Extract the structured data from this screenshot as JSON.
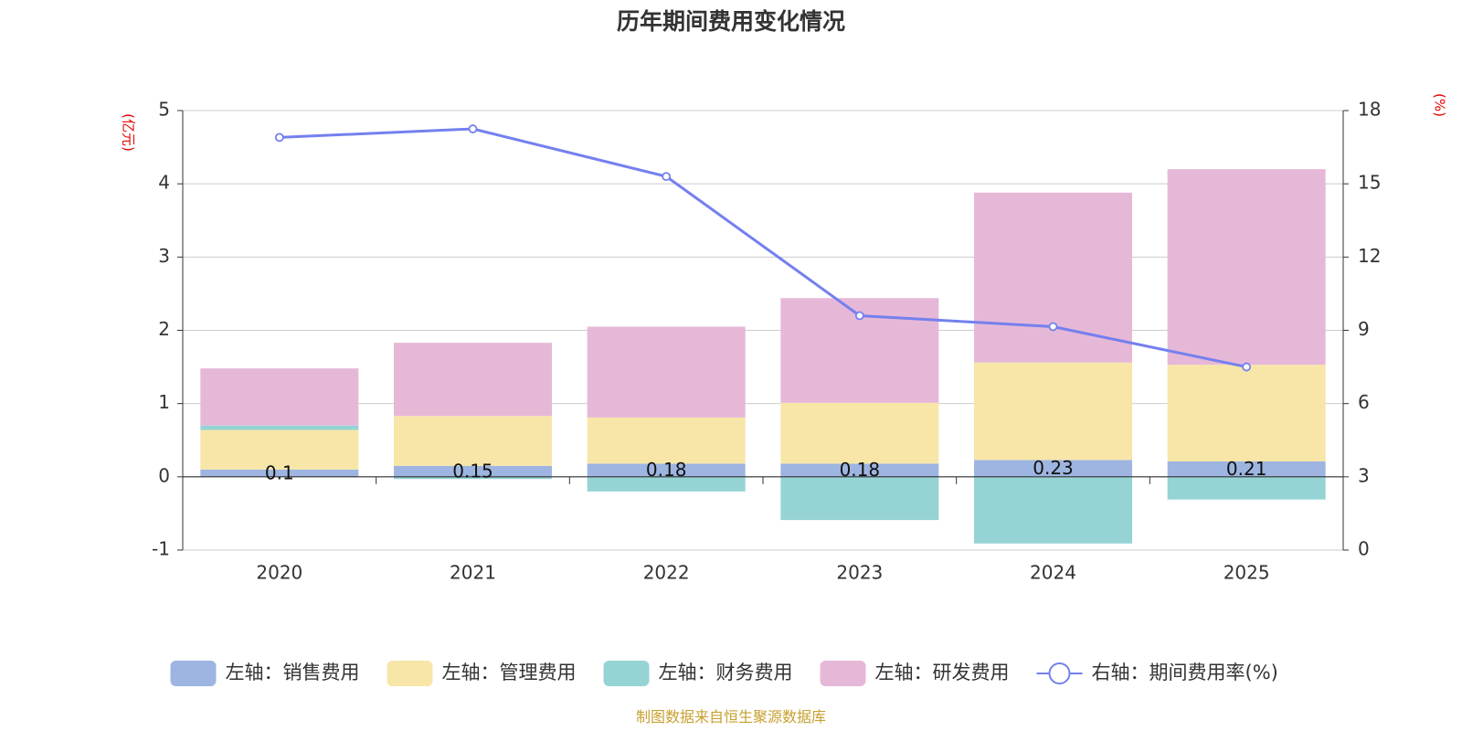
{
  "chart_data": {
    "type": "bar",
    "stacked": true,
    "title": "历年期间费用变化情况",
    "categories": [
      "2020",
      "2021",
      "2022",
      "2023",
      "2024",
      "2025"
    ],
    "left_axis": {
      "unit": "(亿元)",
      "min": -1,
      "max": 5,
      "ticks": [
        "5",
        "4",
        "3",
        "2",
        "1",
        "0",
        "-1"
      ]
    },
    "right_axis": {
      "unit": "(%)",
      "min": 0,
      "max": 18,
      "ticks": [
        "18",
        "15",
        "12",
        "9",
        "6",
        "3",
        "0"
      ]
    },
    "series": [
      {
        "name": "左轴：销售费用",
        "axis": "left",
        "color": "#9db5e0",
        "values": [
          0.1,
          0.15,
          0.18,
          0.18,
          0.23,
          0.21
        ],
        "labels": [
          "0.1",
          "0.15",
          "0.18",
          "0.18",
          "0.23",
          "0.21"
        ]
      },
      {
        "name": "左轴：管理费用",
        "axis": "left",
        "color": "#f8e6a8",
        "values": [
          0.54,
          0.68,
          0.63,
          0.83,
          1.33,
          1.32
        ]
      },
      {
        "name": "左轴：财务费用",
        "axis": "left",
        "color": "#96d3d4",
        "values": [
          0.06,
          -0.03,
          -0.2,
          -0.59,
          -0.91,
          -0.31
        ]
      },
      {
        "name": "左轴：研发费用",
        "axis": "left",
        "color": "#e6b8d8",
        "values": [
          0.78,
          1.0,
          1.24,
          1.43,
          2.32,
          2.67
        ]
      },
      {
        "name": "右轴：期间费用率(%)",
        "axis": "right",
        "type": "line",
        "color": "#7480ee",
        "values": [
          16.9,
          17.25,
          15.3,
          9.6,
          9.15,
          7.5
        ]
      }
    ],
    "grid": true,
    "legend": "bottom"
  },
  "source_note": "制图数据来自恒生聚源数据库"
}
